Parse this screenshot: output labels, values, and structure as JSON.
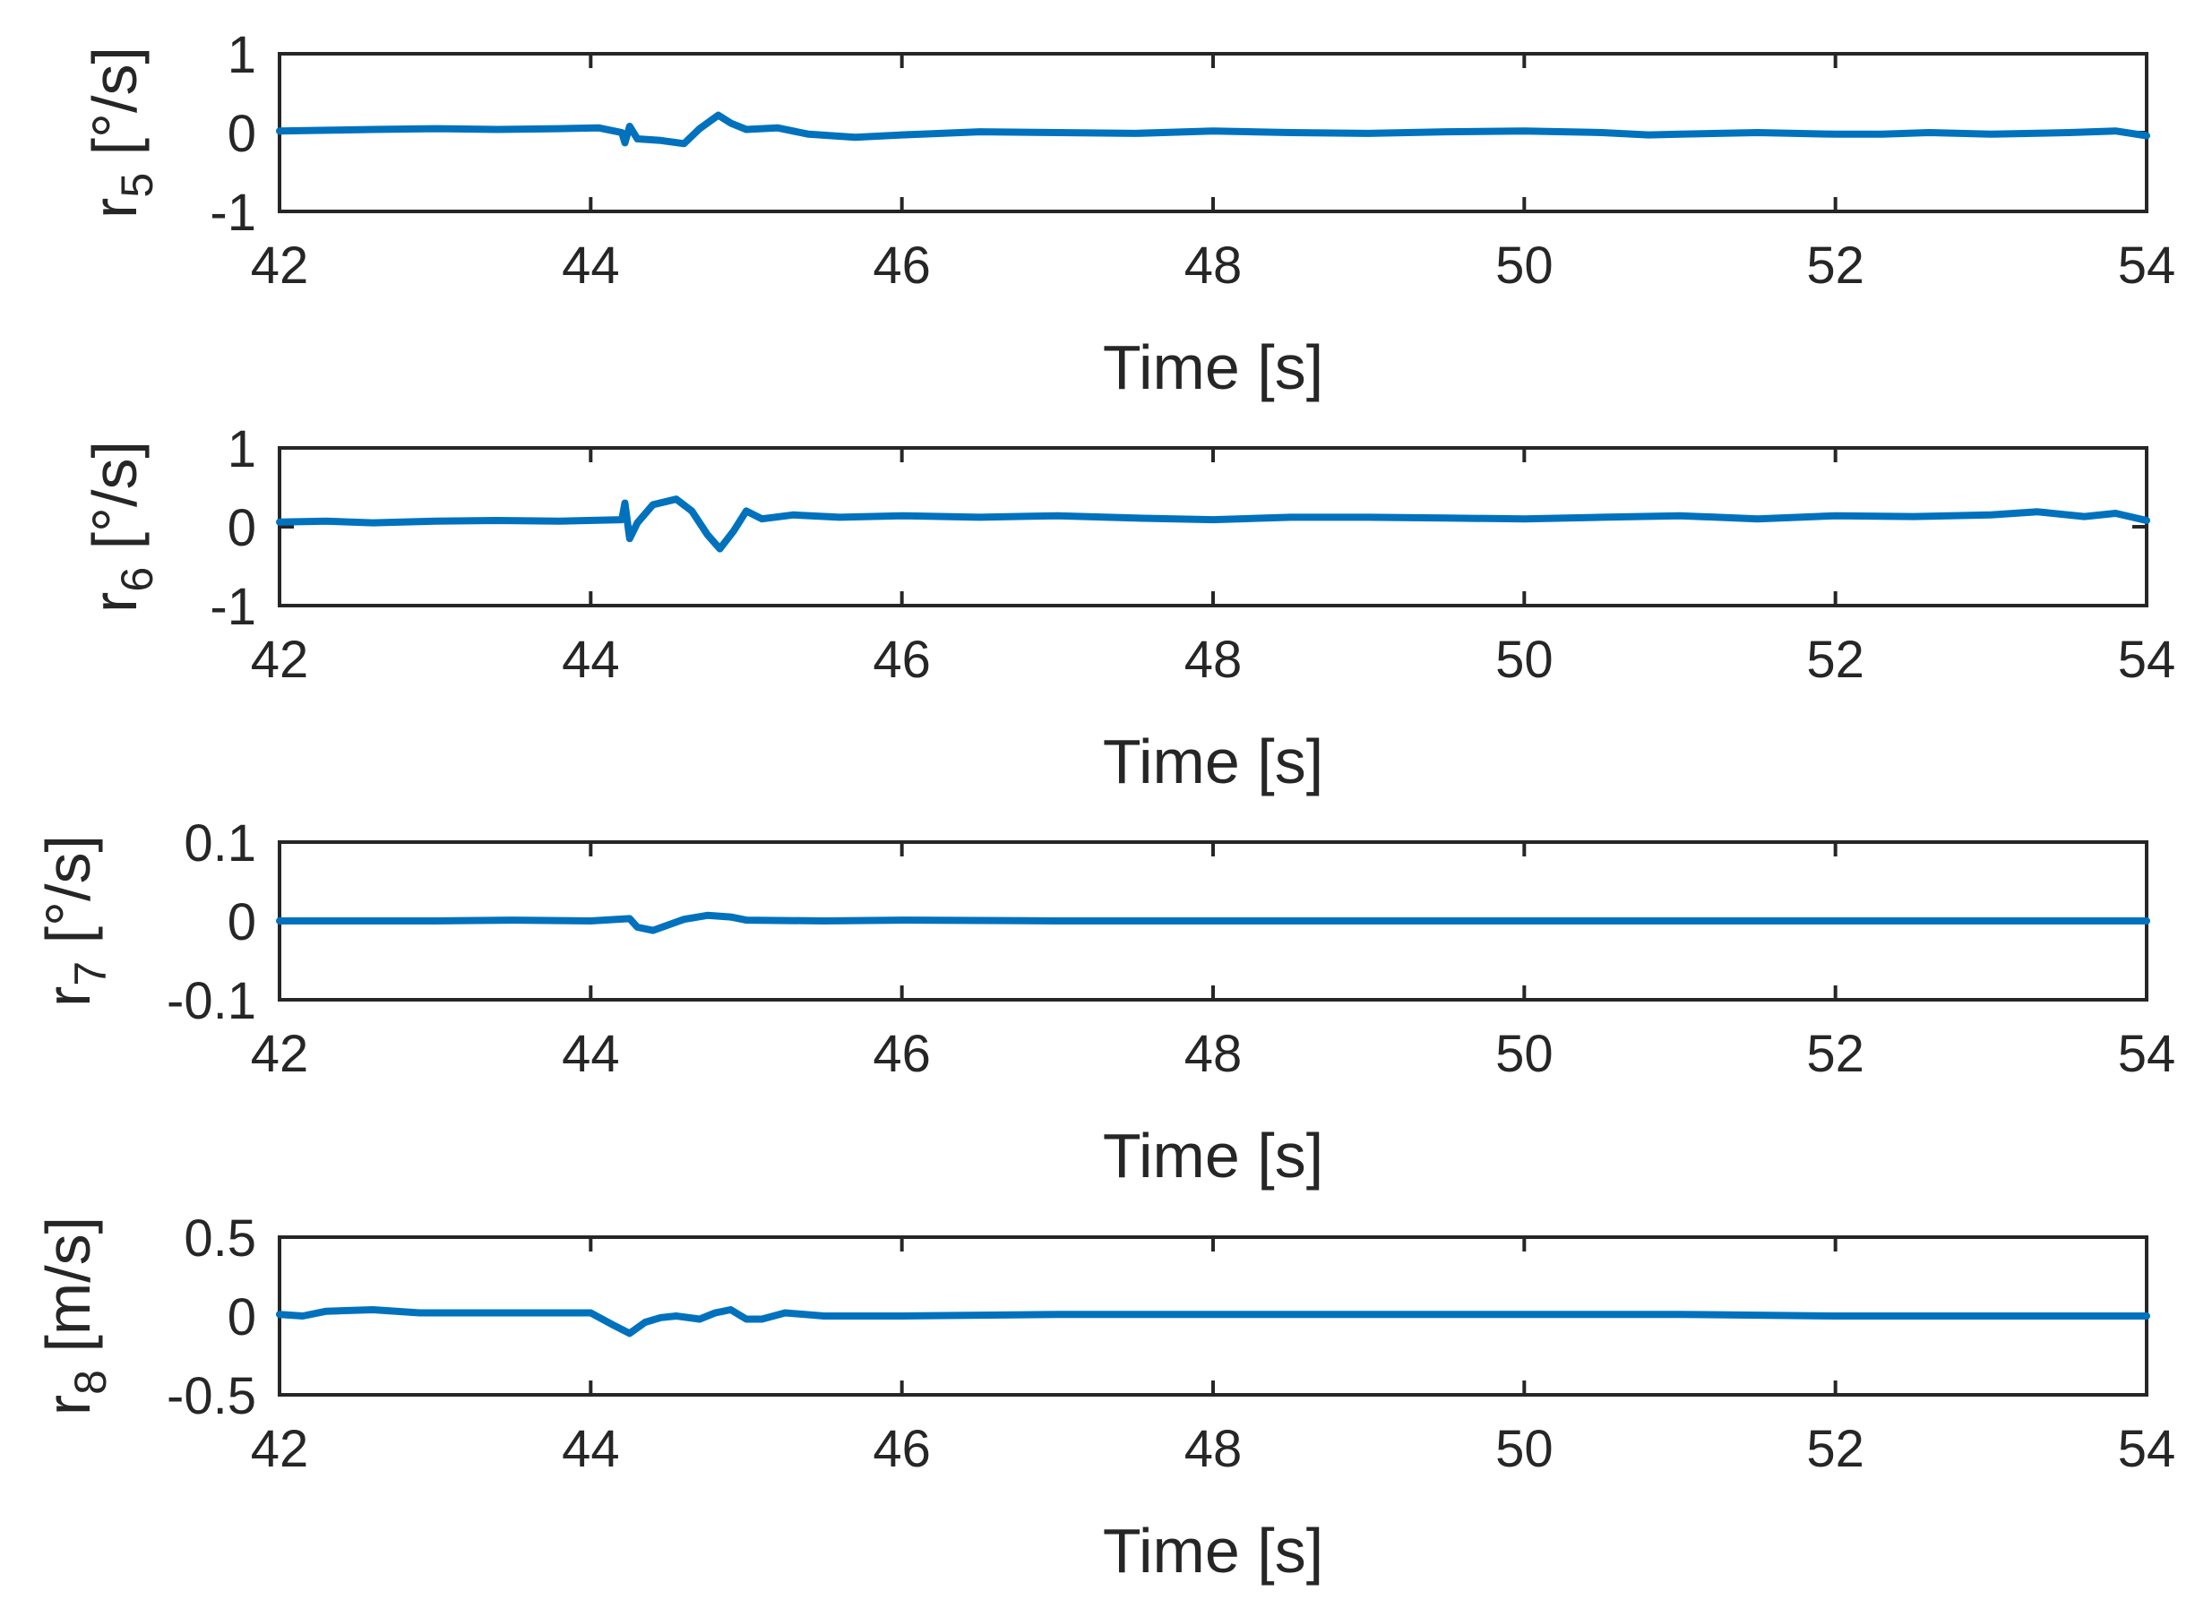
{
  "style": {
    "line_color": "#0072BD",
    "axis_color": "#262626",
    "background": "#ffffff"
  },
  "chart_data": [
    {
      "type": "line",
      "xlabel": "Time [s]",
      "ylabel": {
        "base": "r",
        "sub": "5",
        "unit": "[°/s]"
      },
      "xlim": [
        42,
        54
      ],
      "ylim": [
        -1,
        1
      ],
      "xticks": [
        "42",
        "44",
        "46",
        "48",
        "50",
        "52",
        "54"
      ],
      "yticks": [
        "-1",
        "0",
        "1"
      ],
      "grid": false,
      "series": [
        {
          "x": [
            42.0,
            42.3,
            42.6,
            43.0,
            43.4,
            43.8,
            44.05,
            44.2,
            44.22,
            44.25,
            44.3,
            44.45,
            44.6,
            44.7,
            44.82,
            44.9,
            45.0,
            45.2,
            45.4,
            45.7,
            46.0,
            46.5,
            47.0,
            47.5,
            48.0,
            48.5,
            49.0,
            49.5,
            50.0,
            50.5,
            50.8,
            51.0,
            51.5,
            52.0,
            52.3,
            52.6,
            53.0,
            53.5,
            53.8,
            54.0
          ],
          "y": [
            0.02,
            0.03,
            0.04,
            0.05,
            0.04,
            0.05,
            0.06,
            0.0,
            -0.13,
            0.08,
            -0.08,
            -0.1,
            -0.14,
            0.05,
            0.22,
            0.12,
            0.04,
            0.06,
            -0.02,
            -0.06,
            -0.03,
            0.01,
            0.0,
            -0.01,
            0.02,
            0.0,
            -0.01,
            0.01,
            0.02,
            0.0,
            -0.03,
            -0.02,
            0.0,
            -0.02,
            -0.02,
            0.0,
            -0.02,
            0.0,
            0.02,
            -0.04
          ]
        }
      ]
    },
    {
      "type": "line",
      "xlabel": "Time [s]",
      "ylabel": {
        "base": "r",
        "sub": "6",
        "unit": "[°/s]"
      },
      "xlim": [
        42,
        54
      ],
      "ylim": [
        -1,
        1
      ],
      "xticks": [
        "42",
        "44",
        "46",
        "48",
        "50",
        "52",
        "54"
      ],
      "yticks": [
        "-1",
        "0",
        "1"
      ],
      "grid": false,
      "series": [
        {
          "x": [
            42.0,
            42.3,
            42.6,
            43.0,
            43.4,
            43.8,
            44.2,
            44.22,
            44.25,
            44.3,
            44.4,
            44.55,
            44.65,
            44.75,
            44.83,
            44.92,
            45.0,
            45.1,
            45.3,
            45.6,
            46.0,
            46.5,
            47.0,
            47.5,
            48.0,
            48.5,
            49.0,
            49.5,
            50.0,
            50.5,
            51.0,
            51.5,
            52.0,
            52.5,
            53.0,
            53.3,
            53.6,
            53.8,
            54.0
          ],
          "y": [
            0.06,
            0.07,
            0.05,
            0.07,
            0.08,
            0.07,
            0.09,
            0.3,
            -0.15,
            0.05,
            0.28,
            0.35,
            0.2,
            -0.1,
            -0.28,
            -0.05,
            0.2,
            0.1,
            0.15,
            0.12,
            0.14,
            0.12,
            0.14,
            0.11,
            0.09,
            0.12,
            0.12,
            0.11,
            0.1,
            0.12,
            0.14,
            0.1,
            0.14,
            0.13,
            0.15,
            0.19,
            0.13,
            0.17,
            0.08
          ]
        }
      ]
    },
    {
      "type": "line",
      "xlabel": "Time [s]",
      "ylabel": {
        "base": "r",
        "sub": "7",
        "unit": "[°/s]"
      },
      "xlim": [
        42,
        54
      ],
      "ylim": [
        -0.1,
        0.1
      ],
      "xticks": [
        "42",
        "44",
        "46",
        "48",
        "50",
        "52",
        "54"
      ],
      "yticks": [
        "-0.1",
        "0",
        "0.1"
      ],
      "grid": false,
      "series": [
        {
          "x": [
            42.0,
            42.5,
            43.0,
            43.5,
            44.0,
            44.25,
            44.3,
            44.4,
            44.5,
            44.6,
            44.75,
            44.9,
            45.0,
            45.5,
            46.0,
            47.0,
            48.0,
            49.0,
            50.0,
            51.0,
            52.0,
            53.0,
            54.0
          ],
          "y": [
            0.0,
            0.0,
            0.0,
            0.001,
            0.0,
            0.003,
            -0.008,
            -0.012,
            -0.005,
            0.002,
            0.007,
            0.005,
            0.001,
            0.0,
            0.001,
            0.0,
            0.0,
            0.0,
            0.0,
            0.0,
            0.0,
            0.0,
            0.0
          ]
        }
      ]
    },
    {
      "type": "line",
      "xlabel": "Time [s]",
      "ylabel": {
        "base": "r",
        "sub": "8",
        "unit": "[m/s]"
      },
      "xlim": [
        42,
        54
      ],
      "ylim": [
        -0.5,
        0.5
      ],
      "xticks": [
        "42",
        "44",
        "46",
        "48",
        "50",
        "52",
        "54"
      ],
      "yticks": [
        "-0.5",
        "0",
        "0.5"
      ],
      "grid": false,
      "series": [
        {
          "x": [
            42.0,
            42.15,
            42.3,
            42.6,
            42.9,
            43.2,
            43.6,
            44.0,
            44.15,
            44.25,
            44.35,
            44.45,
            44.55,
            44.7,
            44.8,
            44.9,
            45.0,
            45.1,
            45.25,
            45.5,
            46.0,
            47.0,
            48.0,
            49.0,
            50.0,
            51.0,
            52.0,
            53.0,
            54.0
          ],
          "y": [
            0.01,
            0.0,
            0.03,
            0.04,
            0.02,
            0.02,
            0.02,
            0.02,
            -0.06,
            -0.11,
            -0.04,
            -0.01,
            0.0,
            -0.02,
            0.02,
            0.04,
            -0.02,
            -0.02,
            0.02,
            0.0,
            0.0,
            0.01,
            0.01,
            0.01,
            0.01,
            0.01,
            0.0,
            0.0,
            0.0
          ]
        }
      ]
    }
  ]
}
